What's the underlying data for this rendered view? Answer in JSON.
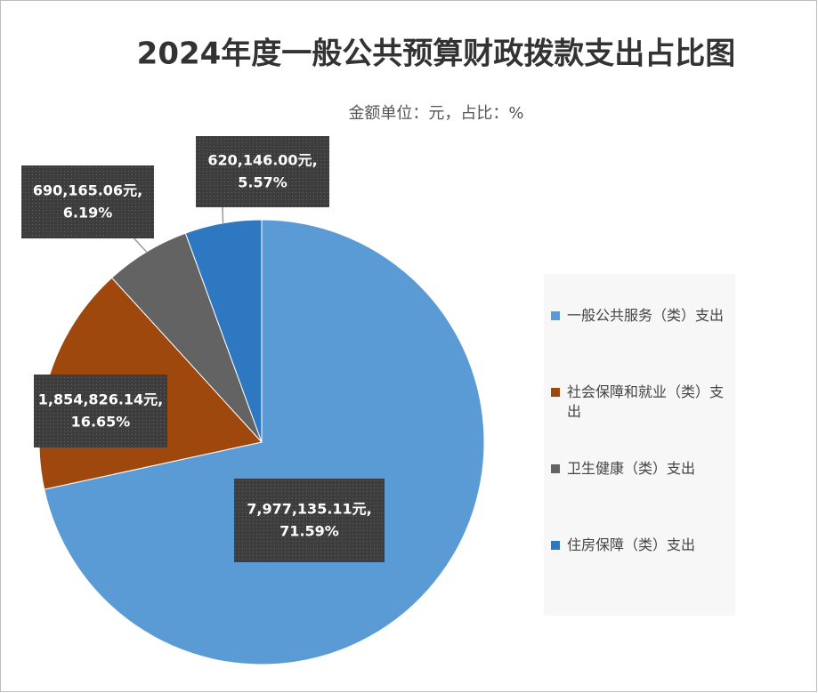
{
  "chart_data": {
    "type": "pie",
    "title": "2024年度一般公共预算财政拨款支出占比图",
    "subtitle": "金额单位：元，占比：%",
    "categories": [
      "一般公共服务（类）支出",
      "社会保障和就业（类）支出",
      "卫生健康（类）支出",
      "住房保障（类）支出"
    ],
    "values": [
      7977135.11,
      1854826.14,
      690165.06,
      620146.0
    ],
    "value_labels": [
      "7,977,135.11元,",
      "1,854,826.14元,",
      "690,165.06元,",
      "620,146.00元,"
    ],
    "percent_labels": [
      "71.59%",
      "16.65%",
      "6.19%",
      "5.57%"
    ],
    "colors": [
      "#5b9bd5",
      "#9e480e",
      "#636363",
      "#2e78c2"
    ],
    "legend": "right"
  }
}
